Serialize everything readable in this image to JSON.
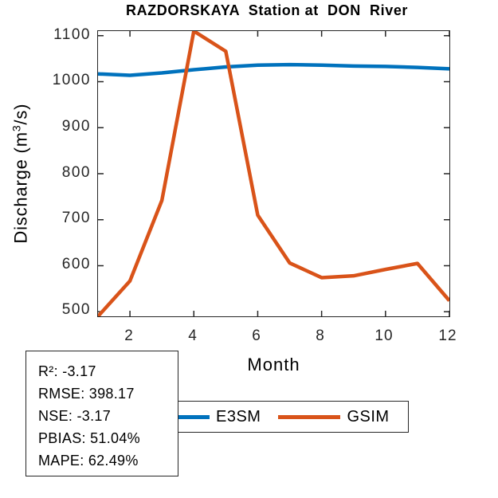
{
  "chart_data": {
    "type": "line",
    "title": "RAZDORSKAYA  Station at  DON  River",
    "xlabel": "Month",
    "ylabel": "Discharge (m^3/s)",
    "ylabel_parts": {
      "pre": "Discharge (m",
      "sup": "3",
      "post": "/s)"
    },
    "x": [
      1,
      2,
      3,
      4,
      5,
      6,
      7,
      8,
      9,
      10,
      11,
      12
    ],
    "series": [
      {
        "name": "E3SM",
        "color": "#0072BD",
        "values": [
          1017,
          1014,
          1019,
          1026,
          1032,
          1036,
          1037,
          1036,
          1034,
          1033,
          1031,
          1028
        ]
      },
      {
        "name": "GSIM",
        "color": "#D95319",
        "values": [
          490,
          567,
          742,
          1110,
          1066,
          710,
          606,
          574,
          578,
          592,
          605,
          524
        ]
      }
    ],
    "xlim": [
      1,
      12
    ],
    "ylim": [
      490,
      1110
    ],
    "xticks": [
      2,
      4,
      6,
      8,
      10,
      12
    ],
    "yticks": [
      500,
      600,
      700,
      800,
      900,
      1000,
      1100
    ],
    "grid": false,
    "legend_position": "below-plot-right"
  },
  "legend": {
    "items": [
      {
        "label": "E3SM",
        "color": "#0072BD"
      },
      {
        "label": "GSIM",
        "color": "#D95319"
      }
    ]
  },
  "stats": {
    "lines": [
      "R²: -3.17",
      "RMSE: 398.17",
      "NSE: -3.17",
      "PBIAS: 51.04%",
      "MAPE: 62.49%"
    ]
  },
  "colors": {
    "axis": "#262626",
    "background": "#FFFFFF",
    "e3sm_line": "#0072BD",
    "gsim_line": "#D95319"
  }
}
